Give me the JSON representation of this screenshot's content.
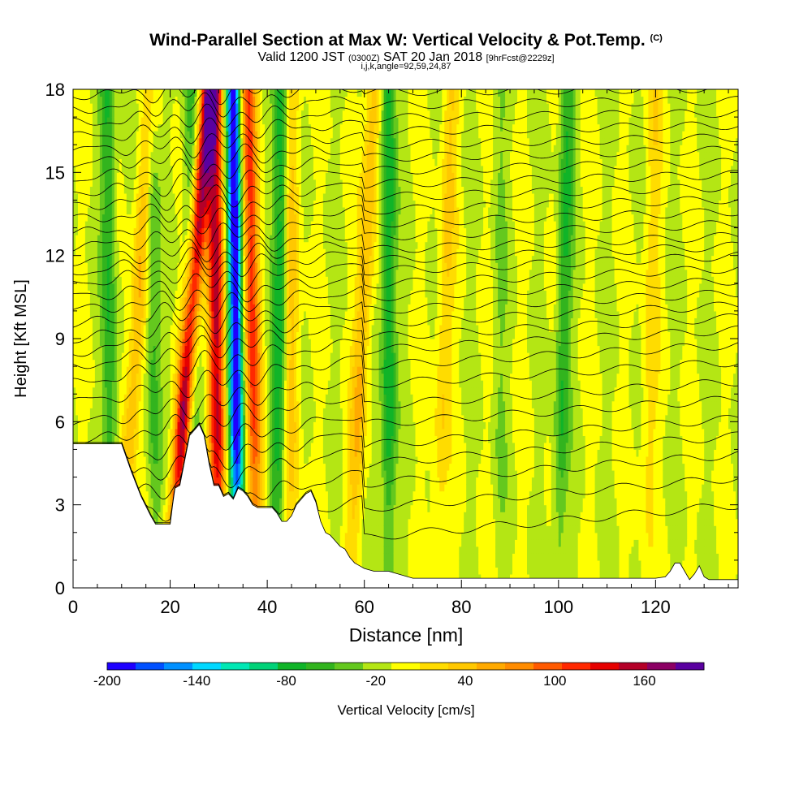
{
  "title": {
    "main": "Wind-Parallel Section at Max W: Vertical Velocity & Pot.Temp.",
    "copyright": "(C)",
    "valid_prefix": "Valid 1200 JST",
    "valid_zulu": "(0300Z)",
    "valid_date": "SAT 20 Jan 2018",
    "forecast": "[9hrFcst@2229z]",
    "indices": "i,j,k,angle=92,59,24,87"
  },
  "chart_data": {
    "type": "heatmap",
    "xlabel": "Distance [nm]",
    "ylabel": "Height [Kft MSL]",
    "xlim": [
      0,
      137
    ],
    "ylim": [
      0,
      18
    ],
    "x_ticks": [
      "0",
      "20",
      "40",
      "60",
      "80",
      "100",
      "120"
    ],
    "x_tick_values": [
      0,
      20,
      40,
      60,
      80,
      100,
      120
    ],
    "y_ticks": [
      "0",
      "3",
      "6",
      "9",
      "12",
      "15",
      "18"
    ],
    "y_tick_values": [
      0,
      3,
      6,
      9,
      12,
      15,
      18
    ],
    "colorbar": {
      "label": "Vertical Velocity [cm/s]",
      "tick_labels": [
        "-200",
        "-140",
        "-80",
        "-20",
        "40",
        "100",
        "160"
      ],
      "tick_values": [
        -200,
        -140,
        -80,
        -20,
        40,
        100,
        160
      ],
      "levels": [
        -200,
        -180,
        -160,
        -140,
        -120,
        -100,
        -80,
        -60,
        -40,
        -20,
        0,
        20,
        40,
        60,
        80,
        100,
        120,
        140,
        160,
        180,
        200
      ],
      "colors": [
        "#1e00ff",
        "#0050ff",
        "#0090ff",
        "#00d8ff",
        "#00e8b4",
        "#00d278",
        "#10b428",
        "#32b41e",
        "#64c81e",
        "#b4e614",
        "#ffff00",
        "#ffdc00",
        "#ffc800",
        "#ffaa00",
        "#ff8c00",
        "#ff5a00",
        "#ff2800",
        "#e60000",
        "#b40028",
        "#8c0064",
        "#5a00a0"
      ]
    },
    "terrain": [
      [
        0,
        5.2
      ],
      [
        5,
        5.2
      ],
      [
        10,
        5.2
      ],
      [
        12,
        4.2
      ],
      [
        14,
        3.3
      ],
      [
        16,
        2.6
      ],
      [
        17,
        2.3
      ],
      [
        18,
        2.3
      ],
      [
        19,
        2.3
      ],
      [
        20,
        2.3
      ],
      [
        20.5,
        3.0
      ],
      [
        21,
        3.6
      ],
      [
        22,
        3.7
      ],
      [
        23,
        4.6
      ],
      [
        24,
        5.5
      ],
      [
        25,
        5.7
      ],
      [
        26,
        5.9
      ],
      [
        27,
        5.5
      ],
      [
        28,
        4.5
      ],
      [
        29,
        3.7
      ],
      [
        30,
        3.7
      ],
      [
        31,
        3.3
      ],
      [
        32,
        3.4
      ],
      [
        33,
        3.2
      ],
      [
        34,
        3.6
      ],
      [
        35,
        3.5
      ],
      [
        36,
        3.3
      ],
      [
        37,
        3.0
      ],
      [
        38,
        2.9
      ],
      [
        39,
        2.9
      ],
      [
        40,
        2.9
      ],
      [
        41,
        2.9
      ],
      [
        42,
        2.7
      ],
      [
        43,
        2.4
      ],
      [
        44,
        2.4
      ],
      [
        45,
        2.6
      ],
      [
        46,
        3.0
      ],
      [
        47,
        3.2
      ],
      [
        48,
        3.4
      ],
      [
        49,
        3.5
      ],
      [
        50,
        3.1
      ],
      [
        51,
        2.4
      ],
      [
        52,
        2.0
      ],
      [
        53,
        1.9
      ],
      [
        54,
        1.7
      ],
      [
        55,
        1.5
      ],
      [
        56,
        1.4
      ],
      [
        57,
        1.1
      ],
      [
        58,
        0.9
      ],
      [
        59,
        0.8
      ],
      [
        60,
        0.7
      ],
      [
        62,
        0.6
      ],
      [
        65,
        0.6
      ],
      [
        70,
        0.35
      ],
      [
        80,
        0.35
      ],
      [
        90,
        0.35
      ],
      [
        100,
        0.35
      ],
      [
        110,
        0.35
      ],
      [
        120,
        0.35
      ],
      [
        122,
        0.4
      ],
      [
        123,
        0.6
      ],
      [
        124,
        0.9
      ],
      [
        125,
        0.9
      ],
      [
        126,
        0.6
      ],
      [
        127,
        0.3
      ],
      [
        128,
        0.5
      ],
      [
        129,
        0.8
      ],
      [
        130,
        0.4
      ],
      [
        131,
        0.3
      ],
      [
        137,
        0.3
      ]
    ],
    "updraft_bands": [
      {
        "x_bottom": 20,
        "x_top": 28,
        "w_max": 180
      },
      {
        "x_bottom": 10,
        "x_top": 16,
        "w_max": 60
      },
      {
        "x_bottom": 30,
        "x_top": 29,
        "w_max": 160
      },
      {
        "x_bottom": 38,
        "x_top": 36,
        "w_max": 120
      },
      {
        "x_bottom": 45,
        "x_top": 45,
        "w_max": 50
      },
      {
        "x_bottom": 57,
        "x_top": 62,
        "w_max": 60
      },
      {
        "x_bottom": 75,
        "x_top": 78,
        "w_max": 40
      },
      {
        "x_bottom": 118,
        "x_top": 120,
        "w_max": 30
      }
    ],
    "downdraft_bands": [
      {
        "x_bottom": 34,
        "x_top": 33,
        "w_min": -200
      },
      {
        "x_bottom": 8,
        "x_top": 7,
        "w_min": -60
      },
      {
        "x_bottom": 17,
        "x_top": 16,
        "w_min": -50
      },
      {
        "x_bottom": 25,
        "x_top": 24,
        "w_min": -50
      },
      {
        "x_bottom": 42,
        "x_top": 43,
        "w_min": -80
      },
      {
        "x_bottom": 65,
        "x_top": 65,
        "w_min": -80
      },
      {
        "x_bottom": 100,
        "x_top": 102,
        "w_min": -60
      },
      {
        "x_bottom": 88,
        "x_top": 88,
        "w_min": -20
      }
    ],
    "isentrope_base_heights": [
      0.9,
      2.0,
      2.95,
      3.7,
      4.4,
      5.2,
      5.9,
      6.7,
      7.4,
      8.0,
      8.5,
      9.0,
      9.5,
      10.0,
      10.5,
      11.0,
      11.4,
      11.8,
      12.3,
      12.8,
      13.3,
      13.8,
      14.3,
      14.8,
      15.3,
      15.8,
      16.3,
      16.8,
      17.3,
      17.8
    ]
  }
}
